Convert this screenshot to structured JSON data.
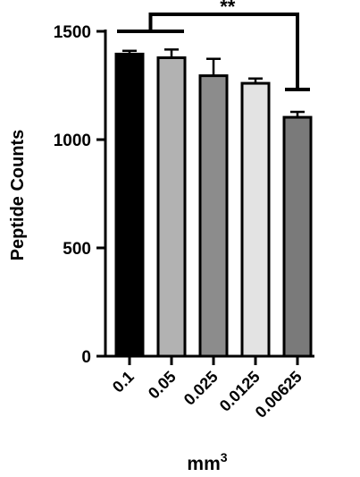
{
  "chart_data": {
    "type": "bar",
    "categories": [
      "0.1",
      "0.05",
      "0.025",
      "0.0125",
      "0.00625"
    ],
    "values": [
      1395,
      1378,
      1295,
      1260,
      1103
    ],
    "errors": [
      15,
      38,
      78,
      22,
      25
    ],
    "bar_colors": [
      "#000000",
      "#b2b2b2",
      "#8c8c8c",
      "#e3e3e3",
      "#7a7a7a"
    ],
    "ylabel": "Peptide Counts",
    "xlabel": "mm",
    "xlabel_superscript": "3",
    "ylim": [
      0,
      1500
    ],
    "yticks": [
      {
        "value": 0,
        "label": "0"
      },
      {
        "value": 500,
        "label": "500"
      },
      {
        "value": 1000,
        "label": "1000"
      },
      {
        "value": 1500,
        "label": "1500"
      }
    ],
    "significance": {
      "from_category": "0.1",
      "to_category": "0.00625",
      "label": "**"
    },
    "grid": false
  }
}
